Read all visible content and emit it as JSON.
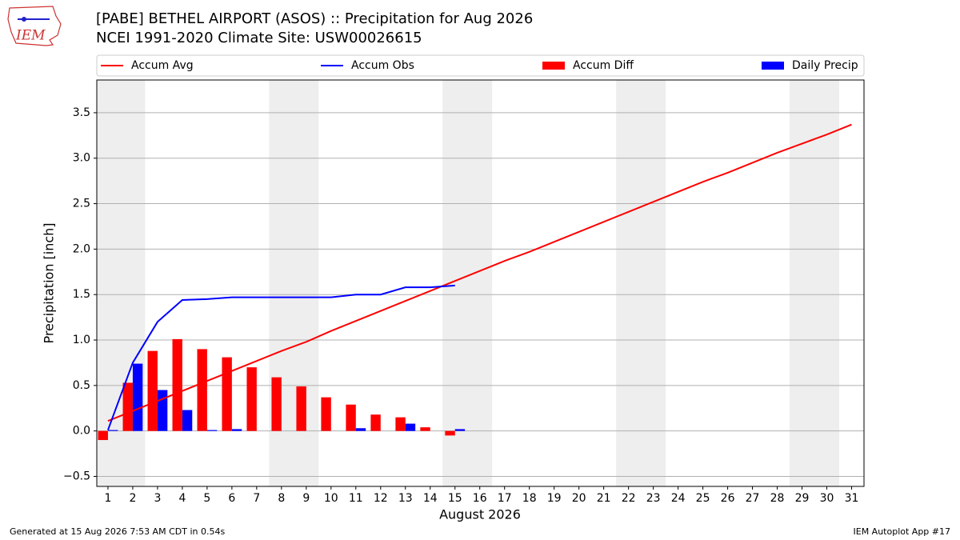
{
  "chart_data": {
    "type": "combo",
    "title": "[PABE] BETHEL AIRPORT (ASOS) :: Precipitation for Aug 2026",
    "subtitle": "NCEI 1991-2020 Climate Site: USW00026615",
    "logo_text": "IEM",
    "x_label": "August 2026",
    "y_label": "Precipitation [inch]",
    "footer_left": "Generated at 15 Aug 2026 7:53 AM CDT in 0.54s",
    "footer_right": "IEM Autoplot App #17",
    "x": [
      1,
      2,
      3,
      4,
      5,
      6,
      7,
      8,
      9,
      10,
      11,
      12,
      13,
      14,
      15,
      16,
      17,
      18,
      19,
      20,
      21,
      22,
      23,
      24,
      25,
      26,
      27,
      28,
      29,
      30,
      31
    ],
    "weekend_spans": [
      [
        0.5,
        2.5
      ],
      [
        7.5,
        9.5
      ],
      [
        14.5,
        16.5
      ],
      [
        21.5,
        23.5
      ],
      [
        28.5,
        30.5
      ]
    ],
    "weekend_color": "#eeeeee",
    "grid": true,
    "xlim": [
      0.55,
      31.5
    ],
    "ylim": [
      -0.61,
      3.86
    ],
    "xticks": [
      1,
      2,
      3,
      4,
      5,
      6,
      7,
      8,
      9,
      10,
      11,
      12,
      13,
      14,
      15,
      16,
      17,
      18,
      19,
      20,
      21,
      22,
      23,
      24,
      25,
      26,
      27,
      28,
      29,
      30,
      31
    ],
    "yticks": [
      {
        "value": -0.5,
        "label": "−0.5"
      },
      {
        "value": 0,
        "label": "0.0"
      },
      0.5,
      {
        "value": 1,
        "label": "1.0"
      },
      1.5,
      {
        "value": 2,
        "label": "2.0"
      },
      2.5,
      {
        "value": 3,
        "label": "3.0"
      },
      3.5
    ],
    "series": [
      {
        "name": "Accum Avg",
        "kind": "line",
        "color": "#ff0000",
        "values": [
          0.11,
          0.22,
          0.33,
          0.44,
          0.55,
          0.66,
          0.77,
          0.88,
          0.98,
          1.1,
          1.21,
          1.32,
          1.43,
          1.54,
          1.65,
          1.76,
          1.87,
          1.97,
          2.08,
          2.19,
          2.3,
          2.41,
          2.52,
          2.63,
          2.74,
          2.84,
          2.95,
          3.06,
          3.16,
          3.26,
          3.37
        ]
      },
      {
        "name": "Accum Obs",
        "kind": "line",
        "color": "#0000ff",
        "values": [
          0.01,
          0.75,
          1.2,
          1.44,
          1.45,
          1.47,
          1.47,
          1.47,
          1.47,
          1.47,
          1.5,
          1.5,
          1.58,
          1.58,
          1.6,
          null,
          null,
          null,
          null,
          null,
          null,
          null,
          null,
          null,
          null,
          null,
          null,
          null,
          null,
          null,
          null
        ]
      },
      {
        "name": "Accum Diff",
        "kind": "bar",
        "color": "#ff0000",
        "offset": -0.4,
        "width": 0.4,
        "values": [
          -0.1,
          0.53,
          0.88,
          1.01,
          0.9,
          0.81,
          0.7,
          0.59,
          0.49,
          0.37,
          0.29,
          0.18,
          0.15,
          0.04,
          -0.05,
          null,
          null,
          null,
          null,
          null,
          null,
          null,
          null,
          null,
          null,
          null,
          null,
          null,
          null,
          null,
          null
        ]
      },
      {
        "name": "Daily Precip",
        "kind": "bar",
        "color": "#0000ff",
        "offset": 0,
        "width": 0.4,
        "values": [
          0.01,
          0.74,
          0.45,
          0.23,
          0.01,
          0.02,
          0,
          0,
          0,
          0,
          0.03,
          0,
          0.08,
          0,
          0.02,
          null,
          null,
          null,
          null,
          null,
          null,
          null,
          null,
          null,
          null,
          null,
          null,
          null,
          null,
          null,
          null
        ]
      }
    ]
  }
}
